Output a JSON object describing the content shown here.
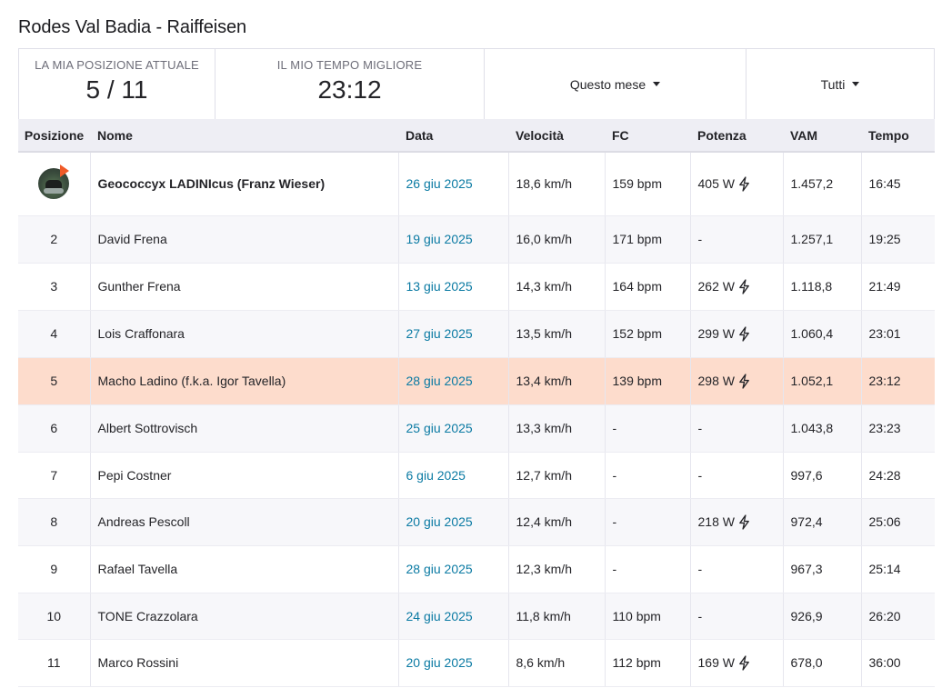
{
  "page": {
    "title": "Rodes Val Badia - Raiffeisen"
  },
  "summary": {
    "position_label": "LA MIA POSIZIONE ATTUALE",
    "position_value": "5 / 11",
    "best_time_label": "IL MIO TEMPO MIGLIORE",
    "best_time_value": "23:12",
    "period_filter": "Questo mese",
    "group_filter": "Tutti"
  },
  "table": {
    "headers": {
      "position": "Posizione",
      "name": "Nome",
      "date": "Data",
      "speed": "Velocità",
      "hr": "FC",
      "power": "Potenza",
      "vam": "VAM",
      "time": "Tempo"
    },
    "rows": [
      {
        "position": "",
        "name": "Geococcyx LADINIcus (Franz Wieser)",
        "date": "26 giu 2025",
        "speed": "18,6 km/h",
        "hr": "159 bpm",
        "power": "405 W",
        "vam": "1.457,2",
        "time": "16:45"
      },
      {
        "position": "2",
        "name": "David Frena",
        "date": "19 giu 2025",
        "speed": "16,0 km/h",
        "hr": "171 bpm",
        "power": "-",
        "vam": "1.257,1",
        "time": "19:25"
      },
      {
        "position": "3",
        "name": "Gunther Frena",
        "date": "13 giu 2025",
        "speed": "14,3 km/h",
        "hr": "164 bpm",
        "power": "262 W",
        "vam": "1.118,8",
        "time": "21:49"
      },
      {
        "position": "4",
        "name": "Lois Craffonara",
        "date": "27 giu 2025",
        "speed": "13,5 km/h",
        "hr": "152 bpm",
        "power": "299 W",
        "vam": "1.060,4",
        "time": "23:01"
      },
      {
        "position": "5",
        "name": "Macho Ladino (f.k.a. Igor Tavella)",
        "date": "28 giu 2025",
        "speed": "13,4 km/h",
        "hr": "139 bpm",
        "power": "298 W",
        "vam": "1.052,1",
        "time": "23:12"
      },
      {
        "position": "6",
        "name": "Albert Sottrovisch",
        "date": "25 giu 2025",
        "speed": "13,3 km/h",
        "hr": "-",
        "power": "-",
        "vam": "1.043,8",
        "time": "23:23"
      },
      {
        "position": "7",
        "name": "Pepi Costner",
        "date": "6 giu 2025",
        "speed": "12,7 km/h",
        "hr": "-",
        "power": "-",
        "vam": "997,6",
        "time": "24:28"
      },
      {
        "position": "8",
        "name": "Andreas Pescoll",
        "date": "20 giu 2025",
        "speed": "12,4 km/h",
        "hr": "-",
        "power": "218 W",
        "vam": "972,4",
        "time": "25:06"
      },
      {
        "position": "9",
        "name": "Rafael Tavella",
        "date": "28 giu 2025",
        "speed": "12,3 km/h",
        "hr": "-",
        "power": "-",
        "vam": "967,3",
        "time": "25:14"
      },
      {
        "position": "10",
        "name": "TONE Crazzolara",
        "date": "24 giu 2025",
        "speed": "11,8 km/h",
        "hr": "110 bpm",
        "power": "-",
        "vam": "926,9",
        "time": "26:20"
      },
      {
        "position": "11",
        "name": "Marco Rossini",
        "date": "20 giu 2025",
        "speed": "8,6 km/h",
        "hr": "112 bpm",
        "power": "169 W",
        "vam": "678,0",
        "time": "36:00"
      }
    ]
  },
  "colors": {
    "highlight_row": "#fddccc",
    "date_link": "#0a7aa3",
    "header_bg": "#eeeef4",
    "avatar_badge": "#f05a28"
  }
}
